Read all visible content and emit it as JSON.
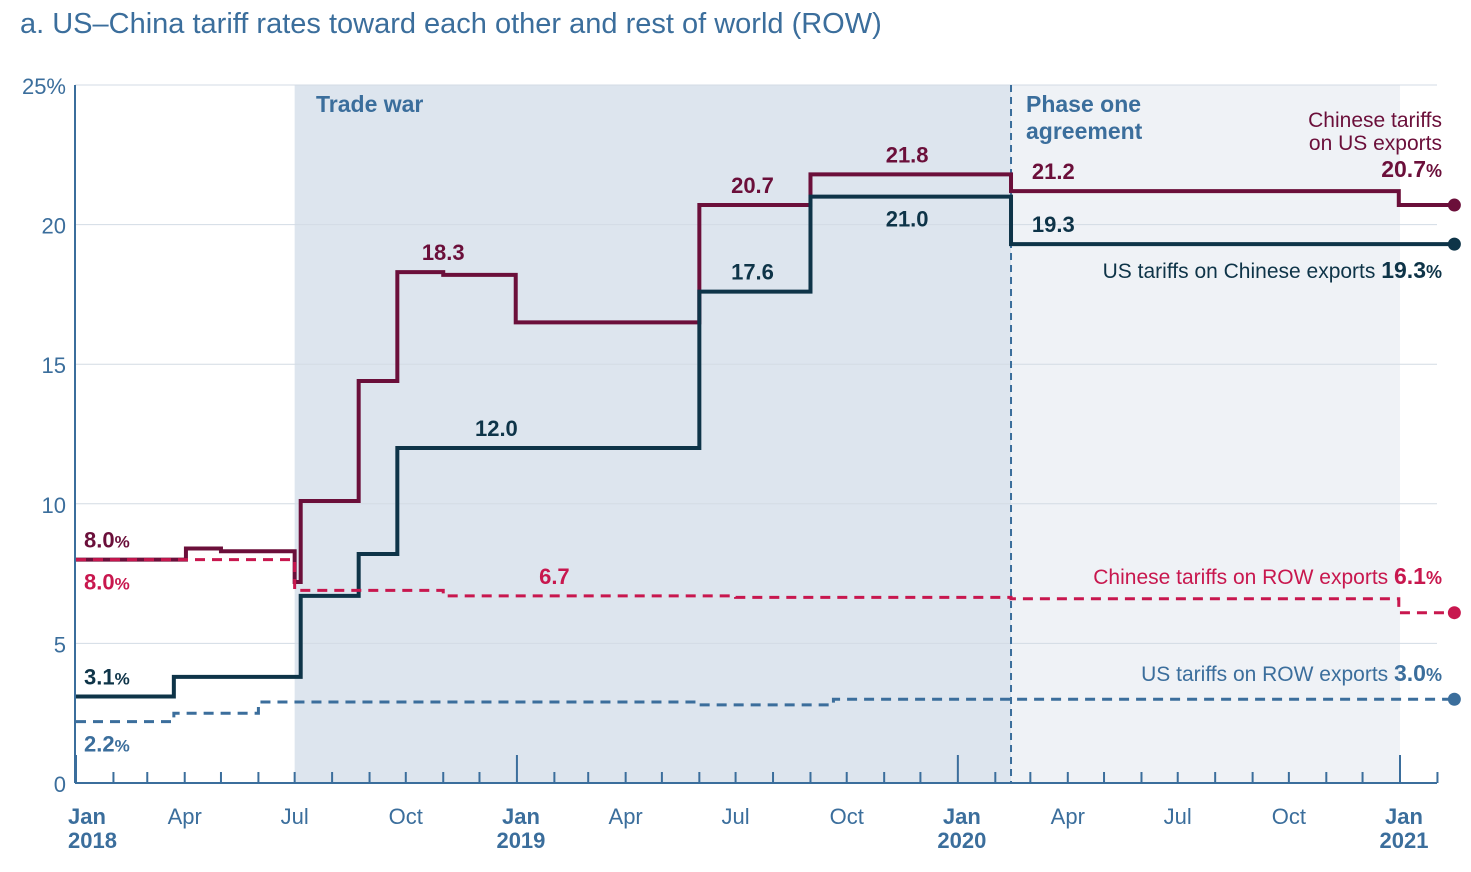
{
  "title": "a. US–China tariff rates toward each other and rest of world (ROW)",
  "chart_data": {
    "type": "line",
    "title": "a. US–China tariff rates toward each other and rest of world (ROW)",
    "xlabel": "",
    "ylabel": "",
    "xlim": [
      "2018-01-01",
      "2021-02-15"
    ],
    "ylim": [
      0,
      25
    ],
    "y_ticks": [
      "0",
      "5",
      "10",
      "15",
      "20",
      "25%"
    ],
    "y_tick_values": [
      0,
      5,
      10,
      15,
      20,
      25
    ],
    "x_ticks": [
      {
        "date": "2018-01-01",
        "label": "Jan",
        "sublabel": "2018"
      },
      {
        "date": "2018-04-01",
        "label": "Apr",
        "sublabel": ""
      },
      {
        "date": "2018-07-01",
        "label": "Jul",
        "sublabel": ""
      },
      {
        "date": "2018-10-01",
        "label": "Oct",
        "sublabel": ""
      },
      {
        "date": "2019-01-01",
        "label": "Jan",
        "sublabel": "2019"
      },
      {
        "date": "2019-04-01",
        "label": "Apr",
        "sublabel": ""
      },
      {
        "date": "2019-07-01",
        "label": "Jul",
        "sublabel": ""
      },
      {
        "date": "2019-10-01",
        "label": "Oct",
        "sublabel": ""
      },
      {
        "date": "2020-01-01",
        "label": "Jan",
        "sublabel": "2020"
      },
      {
        "date": "2020-04-01",
        "label": "Apr",
        "sublabel": ""
      },
      {
        "date": "2020-07-01",
        "label": "Jul",
        "sublabel": ""
      },
      {
        "date": "2020-10-01",
        "label": "Oct",
        "sublabel": ""
      },
      {
        "date": "2021-01-01",
        "label": "Jan",
        "sublabel": "2021"
      }
    ],
    "grid": true,
    "shaded_regions": [
      {
        "label": "Trade war",
        "start": "2018-07-01",
        "end": "2020-02-14",
        "color": "#dde5ee"
      },
      {
        "label": "Phase one agreement",
        "start": "2020-02-14",
        "end": "2021-01-01",
        "color": "#eff2f6"
      }
    ],
    "vlines": [
      {
        "date": "2020-02-14",
        "style": "dashed",
        "color": "#3b6e9c"
      }
    ],
    "series": [
      {
        "name": "Chinese tariffs on US exports",
        "end_value_label": "20.7",
        "color": "#6b0f3a",
        "style": "solid",
        "x": [
          "2018-01-01",
          "2018-03-23",
          "2018-04-02",
          "2018-05-01",
          "2018-07-01",
          "2018-07-06",
          "2018-08-23",
          "2018-09-24",
          "2018-11-01",
          "2018-12-31",
          "2019-06-01",
          "2019-09-01",
          "2019-12-15",
          "2020-02-14",
          "2020-12-31",
          "2021-02-15"
        ],
        "y": [
          8.0,
          8.0,
          8.4,
          8.3,
          7.2,
          10.1,
          14.4,
          18.3,
          18.2,
          16.5,
          20.7,
          21.8,
          21.8,
          21.2,
          20.7,
          20.7
        ]
      },
      {
        "name": "US tariffs on Chinese exports",
        "end_value_label": "19.3",
        "color": "#0e3448",
        "style": "solid",
        "x": [
          "2018-01-01",
          "2018-03-23",
          "2018-07-06",
          "2018-08-23",
          "2018-09-24",
          "2019-05-10",
          "2019-06-01",
          "2019-09-01",
          "2020-02-14",
          "2021-02-15"
        ],
        "y": [
          3.1,
          3.8,
          6.7,
          8.2,
          12.0,
          12.0,
          17.6,
          21.0,
          19.3,
          19.3
        ]
      },
      {
        "name": "Chinese tariffs on ROW exports",
        "end_value_label": "6.1",
        "color": "#c8174e",
        "style": "dashed",
        "x": [
          "2018-01-01",
          "2018-07-01",
          "2018-11-01",
          "2019-07-01",
          "2020-02-14",
          "2020-12-31",
          "2021-02-15"
        ],
        "y": [
          8.0,
          6.9,
          6.7,
          6.65,
          6.6,
          6.1,
          6.1
        ]
      },
      {
        "name": "US tariffs on ROW exports",
        "end_value_label": "3.0",
        "color": "#3b6e9c",
        "style": "dashed",
        "x": [
          "2018-01-01",
          "2018-03-23",
          "2018-06-01",
          "2019-06-01",
          "2019-09-20",
          "2020-02-14",
          "2021-02-15"
        ],
        "y": [
          2.2,
          2.5,
          2.9,
          2.8,
          3.0,
          3.0,
          3.0
        ]
      }
    ],
    "annotations": [
      {
        "text": "8.0",
        "suffix": "%",
        "x": "2018-01-01",
        "y": 8.0,
        "color": "#6b0f3a",
        "pos": "above"
      },
      {
        "text": "8.0",
        "suffix": "%",
        "x": "2018-01-01",
        "y": 8.0,
        "color": "#c8174e",
        "pos": "below"
      },
      {
        "text": "3.1",
        "suffix": "%",
        "x": "2018-01-01",
        "y": 3.1,
        "color": "#0e3448",
        "pos": "above"
      },
      {
        "text": "2.2",
        "suffix": "%",
        "x": "2018-01-01",
        "y": 2.2,
        "color": "#3b6e9c",
        "pos": "below"
      },
      {
        "text": "18.3",
        "suffix": "",
        "x": "2018-11-01",
        "y": 18.3,
        "color": "#6b0f3a",
        "pos": "above"
      },
      {
        "text": "12.0",
        "suffix": "",
        "x": "2018-12-15",
        "y": 12.0,
        "color": "#0e3448",
        "pos": "above"
      },
      {
        "text": "6.7",
        "suffix": "",
        "x": "2019-02-01",
        "y": 6.7,
        "color": "#c8174e",
        "pos": "above"
      },
      {
        "text": "20.7",
        "suffix": "",
        "x": "2019-07-15",
        "y": 20.7,
        "color": "#6b0f3a",
        "pos": "above"
      },
      {
        "text": "17.6",
        "suffix": "",
        "x": "2019-07-15",
        "y": 17.6,
        "color": "#0e3448",
        "pos": "above"
      },
      {
        "text": "21.8",
        "suffix": "",
        "x": "2019-11-20",
        "y": 21.8,
        "color": "#6b0f3a",
        "pos": "above"
      },
      {
        "text": "21.0",
        "suffix": "",
        "x": "2019-11-20",
        "y": 21.0,
        "color": "#0e3448",
        "pos": "below"
      },
      {
        "text": "21.2",
        "suffix": "",
        "x": "2020-03-20",
        "y": 21.2,
        "color": "#6b0f3a",
        "pos": "above"
      },
      {
        "text": "19.3",
        "suffix": "",
        "x": "2020-03-20",
        "y": 19.3,
        "color": "#0e3448",
        "pos": "above"
      }
    ]
  }
}
